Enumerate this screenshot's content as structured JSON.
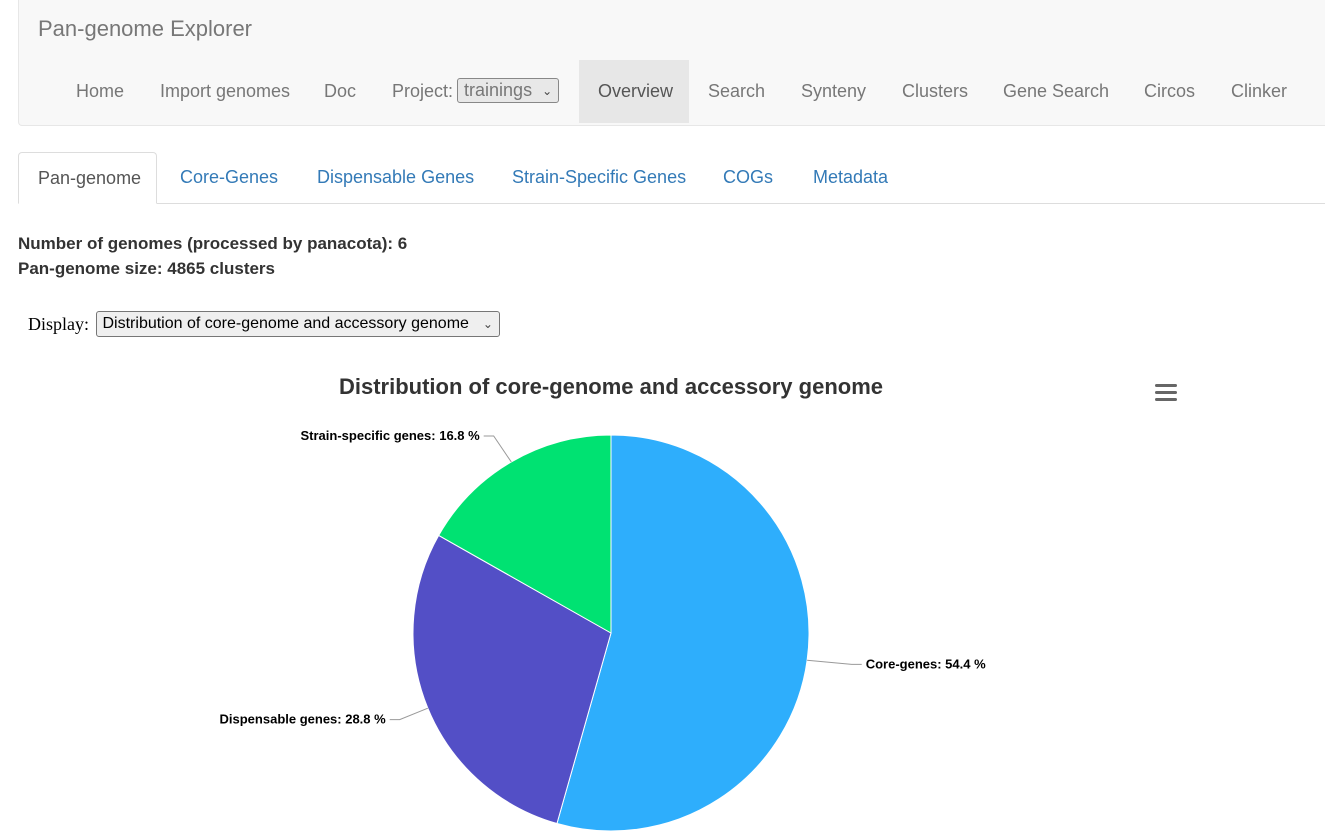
{
  "app": {
    "title": "Pan-genome Explorer"
  },
  "nav": {
    "items": [
      {
        "id": "home",
        "label": "Home"
      },
      {
        "id": "import",
        "label": "Import genomes"
      },
      {
        "id": "doc",
        "label": "Doc"
      },
      {
        "id": "overview",
        "label": "Overview",
        "active": true
      },
      {
        "id": "search",
        "label": "Search"
      },
      {
        "id": "synteny",
        "label": "Synteny"
      },
      {
        "id": "clusters",
        "label": "Clusters"
      },
      {
        "id": "gene-search",
        "label": "Gene Search"
      },
      {
        "id": "circos",
        "label": "Circos"
      },
      {
        "id": "clinker",
        "label": "Clinker"
      }
    ],
    "project_label": "Project:",
    "project_value": "trainings"
  },
  "tabs": [
    {
      "label": "Pan-genome",
      "active": true
    },
    {
      "label": "Core-Genes"
    },
    {
      "label": "Dispensable Genes"
    },
    {
      "label": "Strain-Specific Genes"
    },
    {
      "label": "COGs"
    },
    {
      "label": "Metadata"
    }
  ],
  "stats": {
    "genomes_line": "Number of genomes (processed by panacota): 6",
    "size_line": "Pan-genome size: 4865 clusters"
  },
  "display": {
    "label": "Display:",
    "value": "Distribution of core-genome and accessory genome"
  },
  "chart_data": {
    "type": "pie",
    "title": "Distribution of core-genome and accessory genome",
    "slices": [
      {
        "name": "Core-genes",
        "value": 54.4,
        "color": "#2eaefc",
        "label": "Core-genes: 54.4 %"
      },
      {
        "name": "Dispensable genes",
        "value": 28.8,
        "color": "#534fc6",
        "label": "Dispensable genes: 28.8 %"
      },
      {
        "name": "Strain-specific genes",
        "value": 16.8,
        "color": "#00e272",
        "label": "Strain-specific genes: 16.8 %"
      }
    ]
  },
  "icons": {
    "chart_menu": "hamburger-menu-icon",
    "select_arrow": "chevron-down-icon"
  }
}
